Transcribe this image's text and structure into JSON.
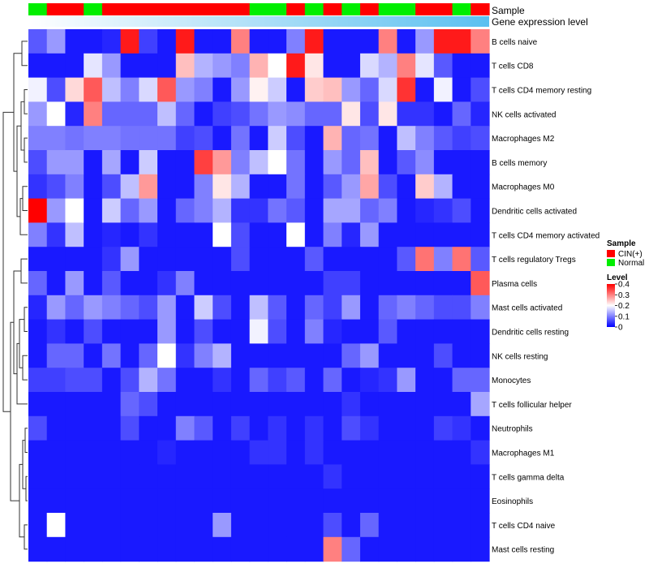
{
  "chart_data": {
    "type": "heatmap",
    "title": "",
    "annotation_tracks": [
      {
        "name": "Sample",
        "values": [
          "Normal",
          "CIN(+)",
          "CIN(+)",
          "Normal",
          "CIN(+)",
          "CIN(+)",
          "CIN(+)",
          "CIN(+)",
          "CIN(+)",
          "CIN(+)",
          "CIN(+)",
          "CIN(+)",
          "Normal",
          "Normal",
          "CIN(+)",
          "Normal",
          "CIN(+)",
          "Normal",
          "CIN(+)",
          "Normal",
          "Normal",
          "CIN(+)",
          "CIN(+)",
          "Normal",
          "CIN(+)"
        ]
      },
      {
        "name": "Gene expression level"
      }
    ],
    "legend_sample": {
      "title": "Sample",
      "entries": [
        {
          "label": "CIN(+)",
          "color": "#ff0000"
        },
        {
          "label": "Normal",
          "color": "#00ee00"
        }
      ]
    },
    "legend_level": {
      "title": "Level",
      "ticks": [
        0.4,
        0.3,
        0.2,
        0.1,
        0
      ],
      "tick_labels": [
        "0.4",
        "0.3",
        "0.2",
        "0.1",
        "0"
      ],
      "range": [
        0,
        0.4
      ],
      "colors": {
        "low": "#0000ff",
        "mid": "#ffffff",
        "high": "#ff0000"
      }
    },
    "rows": [
      "B cells naive",
      "T cells CD8",
      "T cells CD4 memory resting",
      "NK cells activated",
      "Macrophages M2",
      "B cells memory",
      "Macrophages M0",
      "Dendritic cells activated",
      "T cells CD4 memory activated",
      "T cells regulatory  Tregs",
      "Plasma cells",
      "Mast cells activated",
      "Dendritic cells resting",
      "NK cells resting",
      "Monocytes",
      "T cells follicular helper",
      "Neutrophils",
      "Macrophages M1",
      "T cells gamma delta",
      "Eosinophils",
      "T cells CD4 naive",
      "Mast cells resting"
    ],
    "values": [
      [
        0.07,
        0.12,
        0.02,
        0.02,
        0.03,
        0.38,
        0.05,
        0.02,
        0.38,
        0.02,
        0.02,
        0.3,
        0.02,
        0.02,
        0.1,
        0.38,
        0.02,
        0.02,
        0.02,
        0.3,
        0.02,
        0.12,
        0.38,
        0.38,
        0.3
      ],
      [
        0.02,
        0.02,
        0.02,
        0.18,
        0.12,
        0.02,
        0.02,
        0.02,
        0.25,
        0.14,
        0.12,
        0.1,
        0.26,
        0.2,
        0.38,
        0.22,
        0.02,
        0.02,
        0.17,
        0.14,
        0.3,
        0.18,
        0.07,
        0.02,
        0.02
      ],
      [
        0.19,
        0.06,
        0.23,
        0.33,
        0.15,
        0.1,
        0.17,
        0.33,
        0.12,
        0.1,
        0.02,
        0.12,
        0.21,
        0.16,
        0.02,
        0.24,
        0.25,
        0.12,
        0.08,
        0.17,
        0.36,
        0.02,
        0.19,
        0.02,
        0.06
      ],
      [
        0.12,
        0.2,
        0.03,
        0.3,
        0.08,
        0.08,
        0.08,
        0.15,
        0.08,
        0.02,
        0.05,
        0.06,
        0.09,
        0.12,
        0.11,
        0.08,
        0.08,
        0.22,
        0.06,
        0.22,
        0.04,
        0.04,
        0.02,
        0.08,
        0.03
      ],
      [
        0.1,
        0.1,
        0.09,
        0.1,
        0.1,
        0.09,
        0.09,
        0.09,
        0.05,
        0.06,
        0.02,
        0.09,
        0.02,
        0.16,
        0.06,
        0.02,
        0.26,
        0.08,
        0.09,
        0.02,
        0.15,
        0.1,
        0.07,
        0.05,
        0.06
      ],
      [
        0.06,
        0.12,
        0.12,
        0.02,
        0.13,
        0.02,
        0.16,
        0.02,
        0.02,
        0.35,
        0.28,
        0.1,
        0.15,
        0.2,
        0.09,
        0.02,
        0.12,
        0.08,
        0.25,
        0.02,
        0.07,
        0.11,
        0.02,
        0.02,
        0.02
      ],
      [
        0.04,
        0.06,
        0.1,
        0.02,
        0.06,
        0.15,
        0.28,
        0.02,
        0.02,
        0.1,
        0.22,
        0.14,
        0.02,
        0.02,
        0.09,
        0.02,
        0.07,
        0.12,
        0.27,
        0.06,
        0.02,
        0.24,
        0.14,
        0.02,
        0.02
      ],
      [
        0.4,
        0.12,
        0.2,
        0.02,
        0.16,
        0.08,
        0.12,
        0.02,
        0.08,
        0.1,
        0.14,
        0.04,
        0.04,
        0.09,
        0.07,
        0.02,
        0.13,
        0.13,
        0.08,
        0.1,
        0.02,
        0.03,
        0.04,
        0.06,
        0.02
      ],
      [
        0.1,
        0.04,
        0.15,
        0.02,
        0.03,
        0.02,
        0.04,
        0.02,
        0.02,
        0.02,
        0.2,
        0.06,
        0.02,
        0.02,
        0.2,
        0.02,
        0.1,
        0.03,
        0.12,
        0.02,
        0.02,
        0.02,
        0.02,
        0.02,
        0.02
      ],
      [
        0.02,
        0.02,
        0.02,
        0.02,
        0.04,
        0.12,
        0.02,
        0.02,
        0.02,
        0.02,
        0.02,
        0.06,
        0.02,
        0.02,
        0.02,
        0.07,
        0.02,
        0.02,
        0.02,
        0.02,
        0.07,
        0.31,
        0.1,
        0.31,
        0.07
      ],
      [
        0.08,
        0.02,
        0.12,
        0.02,
        0.07,
        0.02,
        0.02,
        0.04,
        0.1,
        0.02,
        0.02,
        0.02,
        0.02,
        0.02,
        0.02,
        0.02,
        0.05,
        0.05,
        0.02,
        0.02,
        0.02,
        0.02,
        0.02,
        0.02,
        0.33
      ],
      [
        0.03,
        0.12,
        0.08,
        0.12,
        0.1,
        0.08,
        0.06,
        0.12,
        0.02,
        0.16,
        0.06,
        0.02,
        0.15,
        0.07,
        0.02,
        0.08,
        0.05,
        0.12,
        0.02,
        0.08,
        0.1,
        0.08,
        0.06,
        0.06,
        0.1
      ],
      [
        0.02,
        0.04,
        0.02,
        0.06,
        0.02,
        0.02,
        0.02,
        0.12,
        0.02,
        0.06,
        0.02,
        0.02,
        0.19,
        0.06,
        0.02,
        0.1,
        0.03,
        0.02,
        0.02,
        0.07,
        0.02,
        0.02,
        0.02,
        0.02,
        0.02
      ],
      [
        0.02,
        0.08,
        0.08,
        0.02,
        0.09,
        0.02,
        0.08,
        0.2,
        0.04,
        0.1,
        0.14,
        0.02,
        0.02,
        0.02,
        0.02,
        0.02,
        0.02,
        0.08,
        0.12,
        0.02,
        0.02,
        0.02,
        0.06,
        0.02,
        0.02
      ],
      [
        0.05,
        0.05,
        0.06,
        0.06,
        0.02,
        0.06,
        0.14,
        0.09,
        0.02,
        0.02,
        0.04,
        0.02,
        0.08,
        0.05,
        0.07,
        0.02,
        0.08,
        0.02,
        0.03,
        0.04,
        0.12,
        0.02,
        0.02,
        0.08,
        0.08
      ],
      [
        0.02,
        0.02,
        0.02,
        0.02,
        0.02,
        0.08,
        0.06,
        0.02,
        0.02,
        0.02,
        0.02,
        0.02,
        0.02,
        0.02,
        0.02,
        0.02,
        0.02,
        0.04,
        0.02,
        0.02,
        0.02,
        0.02,
        0.02,
        0.02,
        0.13
      ],
      [
        0.06,
        0.02,
        0.02,
        0.02,
        0.02,
        0.06,
        0.02,
        0.02,
        0.1,
        0.07,
        0.02,
        0.05,
        0.02,
        0.04,
        0.02,
        0.04,
        0.02,
        0.06,
        0.04,
        0.02,
        0.02,
        0.02,
        0.05,
        0.04,
        0.02
      ],
      [
        0.02,
        0.02,
        0.02,
        0.02,
        0.02,
        0.02,
        0.02,
        0.03,
        0.02,
        0.02,
        0.02,
        0.02,
        0.04,
        0.04,
        0.02,
        0.04,
        0.02,
        0.02,
        0.02,
        0.02,
        0.02,
        0.02,
        0.02,
        0.02,
        0.04
      ],
      [
        0.02,
        0.02,
        0.02,
        0.02,
        0.02,
        0.02,
        0.02,
        0.02,
        0.02,
        0.02,
        0.02,
        0.02,
        0.02,
        0.02,
        0.02,
        0.02,
        0.04,
        0.02,
        0.02,
        0.02,
        0.02,
        0.02,
        0.02,
        0.02,
        0.02
      ],
      [
        0.02,
        0.02,
        0.02,
        0.02,
        0.02,
        0.02,
        0.02,
        0.02,
        0.02,
        0.02,
        0.02,
        0.02,
        0.02,
        0.02,
        0.02,
        0.02,
        0.02,
        0.02,
        0.02,
        0.02,
        0.02,
        0.02,
        0.02,
        0.02,
        0.02
      ],
      [
        0.02,
        0.2,
        0.02,
        0.02,
        0.02,
        0.02,
        0.02,
        0.02,
        0.02,
        0.02,
        0.12,
        0.02,
        0.02,
        0.02,
        0.02,
        0.02,
        0.06,
        0.02,
        0.08,
        0.02,
        0.02,
        0.02,
        0.02,
        0.02,
        0.02
      ],
      [
        0.02,
        0.02,
        0.02,
        0.02,
        0.02,
        0.02,
        0.02,
        0.02,
        0.02,
        0.02,
        0.02,
        0.02,
        0.02,
        0.02,
        0.02,
        0.02,
        0.3,
        0.08,
        0.02,
        0.02,
        0.02,
        0.02,
        0.02,
        0.02,
        0.02
      ]
    ],
    "row_dendrogram": true
  },
  "colors": {
    "cin": "#ff0000",
    "normal": "#00ee00",
    "low": "#0000ff",
    "mid": "#ffffff",
    "high": "#ff0000",
    "expr_bar": "#5bc0f0",
    "dendro": "#333333"
  }
}
